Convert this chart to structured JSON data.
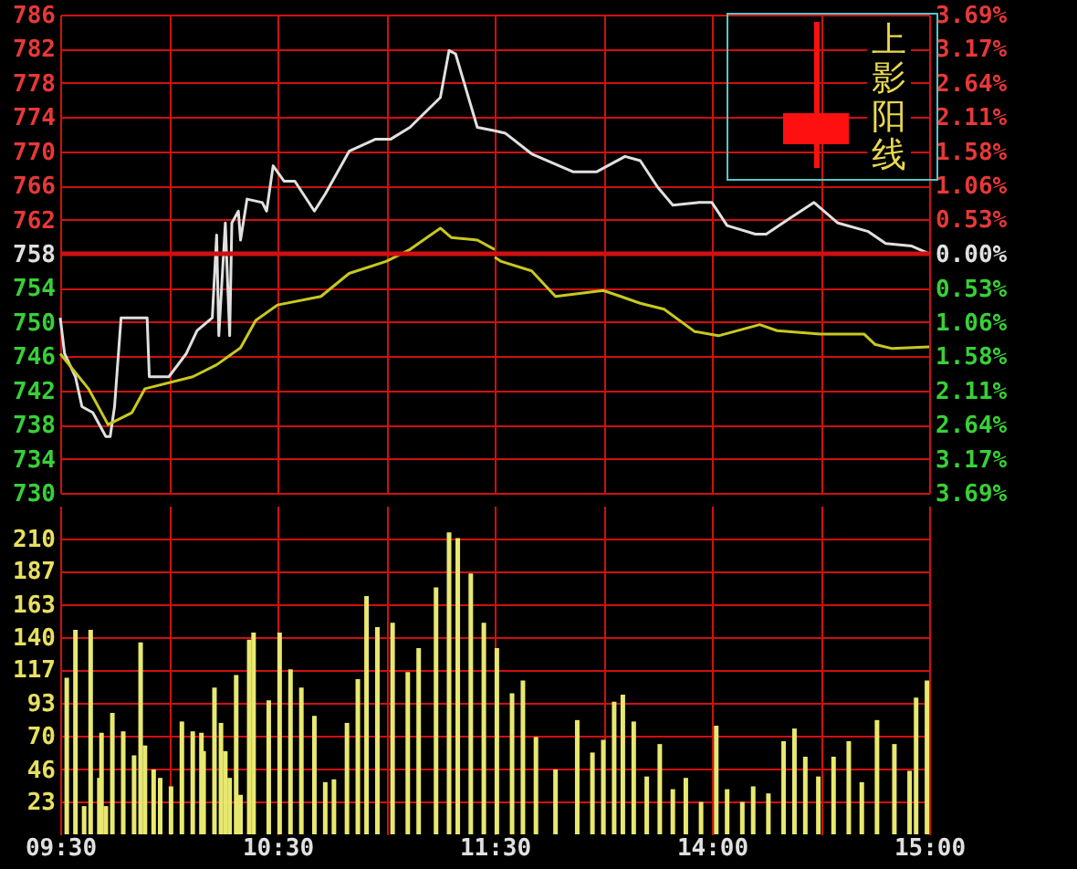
{
  "chart_data": [
    {
      "type": "line",
      "grid": true,
      "tick_labels": "y",
      "xlim": [
        9.5,
        11.5
      ],
      "ylim": [
        730,
        786
      ],
      "ref_lines": [
        {
          "axis": "y",
          "value": 758,
          "color": "#d01010"
        }
      ],
      "xticks": [
        9.5,
        10,
        10.5,
        11,
        11.5
      ],
      "yticks": [
        730,
        734,
        738,
        742,
        746,
        750,
        754,
        758,
        762,
        766,
        770,
        774,
        778,
        782,
        786
      ],
      "series": [
        {
          "type": "line",
          "color": "#e0e0e0",
          "x": [
            9.5,
            9.52,
            9.57,
            9.6,
            9.65,
            9.71,
            9.73,
            9.75,
            9.78,
            9.9,
            9.91,
            10,
            10.08,
            10.13,
            10.2,
            10.22,
            10.23,
            10.26,
            10.28,
            10.29,
            10.32,
            10.33,
            10.36,
            10.43,
            10.45,
            10.48,
            10.53,
            10.58,
            10.67,
            10.72,
            10.83,
            10.95,
            11.02,
            11.11,
            11.25,
            11.29,
            11.32,
            11.42,
            11.5
          ],
          "values": [
            750.5,
            746.3,
            743.6,
            740.1,
            739.4,
            736.6,
            736.6,
            740.1,
            750.5,
            750.5,
            743.6,
            743.6,
            746.3,
            749,
            750.5,
            760.2,
            748.4,
            761.6,
            748.4,
            761.6,
            763,
            759.6,
            764.4,
            764,
            763,
            768.3,
            766.5,
            766.5,
            763,
            765,
            770,
            771.4,
            771.4,
            772.8,
            776.3,
            781.8,
            781.4,
            772.8,
            772.4
          ]
        },
        {
          "type": "line",
          "color": "#c8c820",
          "x": [
            9.5,
            9.63,
            9.72,
            9.83,
            9.89,
            10.11,
            10.22,
            10.33,
            10.4,
            10.5,
            10.7,
            10.83,
            11,
            11.11,
            11.25,
            11.3,
            11.42,
            11.5
          ],
          "values": [
            746.3,
            742.2,
            738,
            739.4,
            742.2,
            743.6,
            745,
            747,
            750.2,
            752,
            753,
            755.7,
            757.1,
            758.5,
            761,
            759.9,
            759.6,
            758.5
          ]
        }
      ]
    },
    {
      "type": "line",
      "grid": true,
      "tick_labels": false,
      "annotations": [
        "上影阳线"
      ],
      "xlim": [
        13,
        15
      ],
      "ylim": [
        730,
        786
      ],
      "y2lim": [
        -3.69,
        3.69
      ],
      "ref_lines": [
        {
          "axis": "y",
          "value": 758,
          "color": "#d01010"
        }
      ],
      "xticks": [
        13,
        13.5,
        14,
        14.5,
        15
      ],
      "yticks": [
        730,
        734,
        738,
        742,
        746,
        750,
        754,
        758,
        762,
        766,
        770,
        774,
        778,
        782,
        786
      ],
      "y2ticks": [
        {
          "value": -3.69,
          "label": "3.69%"
        },
        {
          "value": -3.17,
          "label": "3.17%"
        },
        {
          "value": -2.64,
          "label": "2.64%"
        },
        {
          "value": -2.11,
          "label": "2.11%"
        },
        {
          "value": -1.58,
          "label": "1.58%"
        },
        {
          "value": -1.06,
          "label": "1.06%"
        },
        {
          "value": -0.53,
          "label": "0.53%"
        },
        {
          "value": 0,
          "label": "0.00%"
        },
        {
          "value": 0.53,
          "label": "0.53%"
        },
        {
          "value": 1.06,
          "label": "1.06%"
        },
        {
          "value": 1.58,
          "label": "1.58%"
        },
        {
          "value": 2.11,
          "label": "2.11%"
        },
        {
          "value": 2.64,
          "label": "2.64%"
        },
        {
          "value": 3.17,
          "label": "3.17%"
        },
        {
          "value": 3.69,
          "label": "3.69%"
        }
      ],
      "series": [
        {
          "type": "line",
          "color": "#e0e0e0",
          "x": [
            13,
            13.05,
            13.17,
            13.36,
            13.47,
            13.6,
            13.67,
            13.75,
            13.82,
            13.94,
            14,
            14.07,
            14.2,
            14.25,
            14.35,
            14.47,
            14.58,
            14.72,
            14.8,
            14.92,
            15
          ],
          "values": [
            772.4,
            772.1,
            769.7,
            767.6,
            767.6,
            769.4,
            768.9,
            765.8,
            763.7,
            764,
            764,
            761.3,
            760.3,
            760.3,
            762,
            764,
            761.6,
            760.6,
            759.2,
            758.9,
            758
          ]
        },
        {
          "type": "line",
          "color": "#c8c820",
          "x": [
            13,
            13.03,
            13.17,
            13.28,
            13.5,
            13.58,
            13.67,
            13.78,
            13.92,
            14.03,
            14.22,
            14.3,
            14.5,
            14.7,
            14.75,
            14.83,
            15
          ],
          "values": [
            757.6,
            757.1,
            756,
            753,
            753.7,
            753,
            752.2,
            751.5,
            748.9,
            748.4,
            749.7,
            749,
            748.6,
            748.6,
            747.4,
            746.9,
            747.1
          ]
        }
      ]
    },
    {
      "type": "bar",
      "grid": true,
      "color": "#e8e870",
      "xlim": [
        9.5,
        11.5
      ],
      "ylim": [
        0,
        233
      ],
      "xticks": [
        {
          "value": 9.5,
          "label": "09:30"
        },
        {
          "value": 10,
          "label": null
        },
        {
          "value": 10.5,
          "label": "10:30"
        },
        {
          "value": 11,
          "label": null
        },
        {
          "value": 11.5,
          "label": "11:30"
        }
      ],
      "yticks": [
        23,
        46,
        70,
        93,
        117,
        140,
        163,
        187,
        210
      ],
      "x": [
        9.53,
        9.57,
        9.61,
        9.64,
        9.68,
        9.69,
        9.71,
        9.74,
        9.79,
        9.84,
        9.87,
        9.89,
        9.93,
        9.96,
        10.01,
        10.06,
        10.11,
        10.15,
        10.16,
        10.21,
        10.24,
        10.26,
        10.28,
        10.31,
        10.33,
        10.37,
        10.39,
        10.46,
        10.51,
        10.56,
        10.61,
        10.67,
        10.72,
        10.76,
        10.82,
        10.87,
        10.91,
        10.96,
        11.03,
        11.1,
        11.15,
        11.23,
        11.29,
        11.33,
        11.39,
        11.45
      ],
      "values": [
        111,
        145,
        20,
        145,
        40,
        72,
        20,
        86,
        73,
        56,
        136,
        63,
        46,
        40,
        34,
        80,
        73,
        72,
        59,
        104,
        79,
        59,
        40,
        113,
        28,
        138,
        143,
        95,
        143,
        117,
        104,
        84,
        37,
        39,
        79,
        110,
        169,
        147,
        150,
        115,
        132,
        175,
        214,
        210,
        185,
        150
      ]
    },
    {
      "type": "bar",
      "grid": true,
      "tick_labels": "x",
      "color": "#e8e870",
      "xlim": [
        13,
        15
      ],
      "ylim": [
        0,
        233
      ],
      "xticks": [
        {
          "value": 13,
          "label": null
        },
        {
          "value": 13.5,
          "label": null
        },
        {
          "value": 14,
          "label": "14:00"
        },
        {
          "value": 14.5,
          "label": null
        },
        {
          "value": 15,
          "label": "15:00"
        }
      ],
      "yticks": [
        23,
        46,
        70,
        93,
        117,
        140,
        163,
        187,
        210
      ],
      "x": [
        13.01,
        13.08,
        13.13,
        13.19,
        13.28,
        13.38,
        13.45,
        13.5,
        13.55,
        13.59,
        13.64,
        13.7,
        13.76,
        13.82,
        13.88,
        13.95,
        14.02,
        14.07,
        14.14,
        14.19,
        14.26,
        14.33,
        14.38,
        14.43,
        14.49,
        14.56,
        14.63,
        14.69,
        14.76,
        14.84,
        14.91,
        14.94,
        14.99
      ],
      "values": [
        132,
        100,
        109,
        69,
        46,
        81,
        58,
        67,
        94,
        99,
        80,
        41,
        64,
        32,
        40,
        23,
        77,
        32,
        23,
        34,
        29,
        66,
        75,
        55,
        41,
        55,
        66,
        37,
        81,
        64,
        45,
        97,
        109
      ]
    }
  ]
}
